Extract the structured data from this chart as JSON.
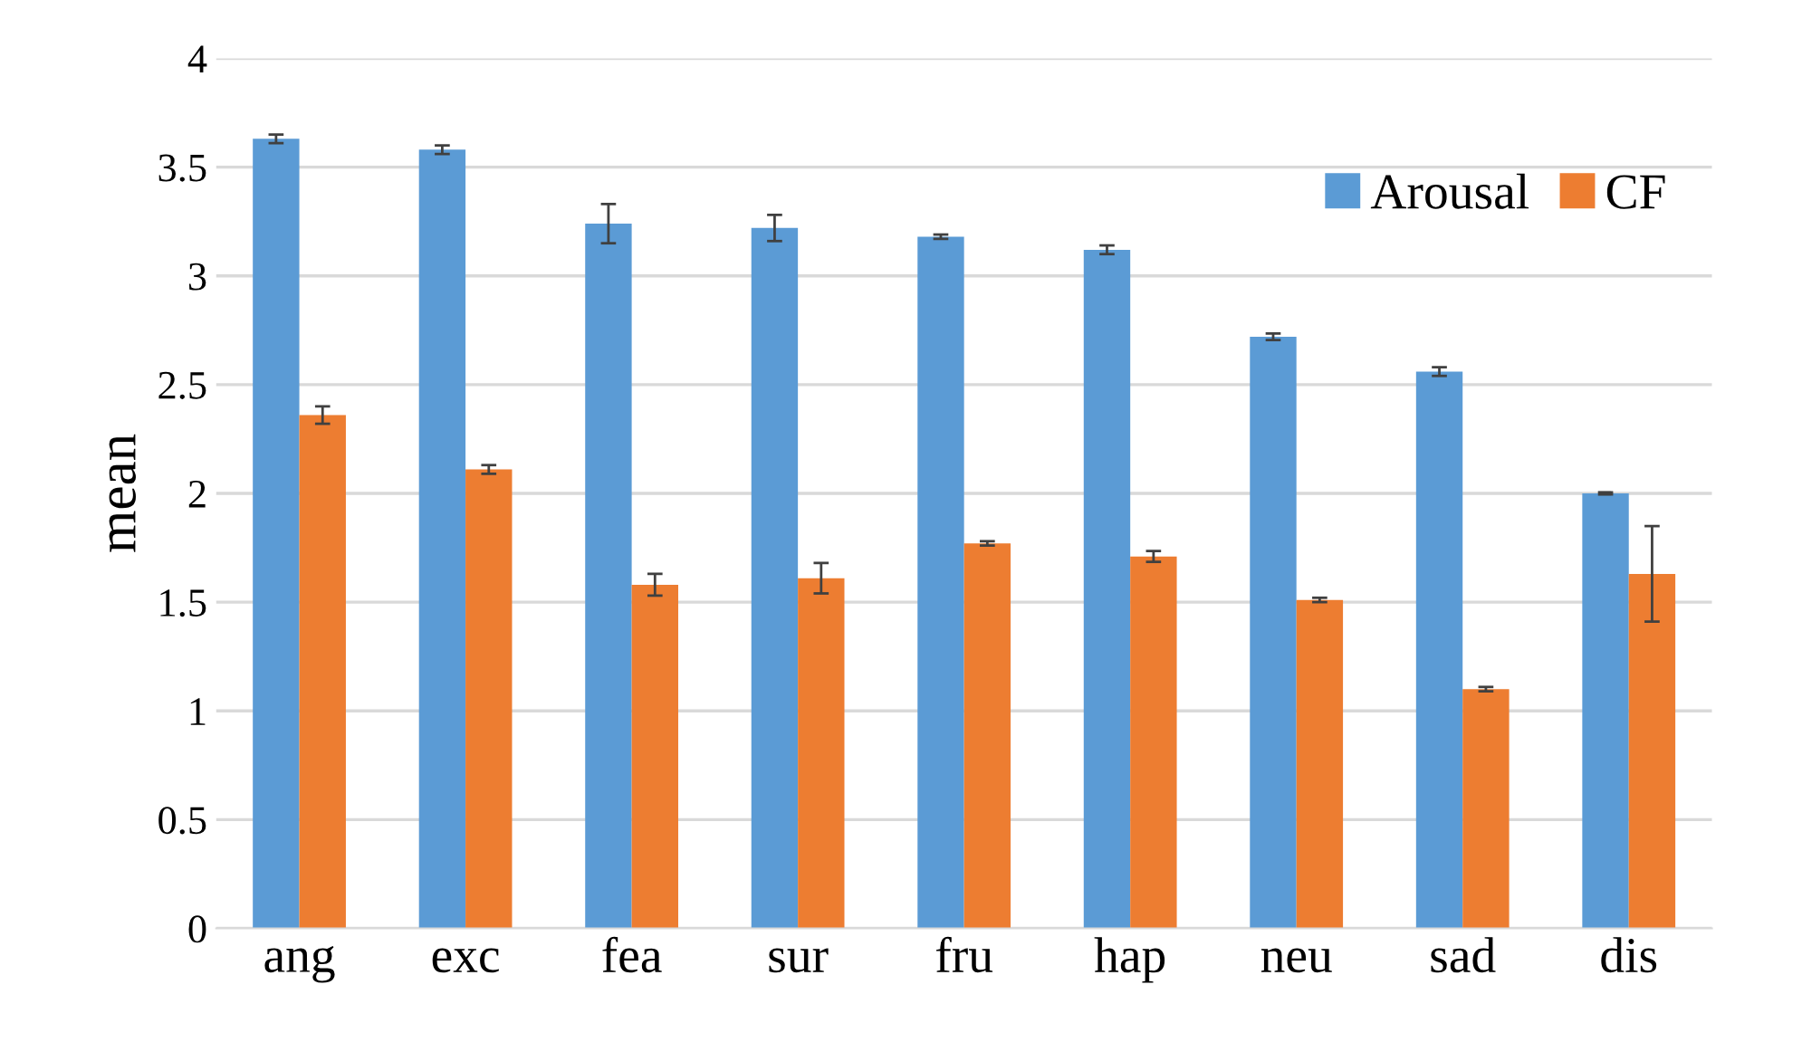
{
  "chart_data": {
    "type": "bar",
    "ylabel": "mean",
    "categories": [
      "ang",
      "exc",
      "fea",
      "sur",
      "fru",
      "hap",
      "neu",
      "sad",
      "dis"
    ],
    "series": [
      {
        "name": "Arousal",
        "color": "#5b9bd5",
        "values": [
          3.63,
          3.58,
          3.24,
          3.22,
          3.18,
          3.12,
          2.72,
          2.56,
          2.0
        ],
        "errors": [
          0.02,
          0.02,
          0.09,
          0.06,
          0.01,
          0.02,
          0.015,
          0.02,
          0.005
        ]
      },
      {
        "name": "CF",
        "color": "#ed7d31",
        "values": [
          2.36,
          2.11,
          1.58,
          1.61,
          1.77,
          1.71,
          1.51,
          1.1,
          1.63
        ],
        "errors": [
          0.04,
          0.02,
          0.05,
          0.07,
          0.01,
          0.025,
          0.01,
          0.01,
          0.22
        ]
      }
    ],
    "ylim": [
      0,
      4
    ],
    "yticks": [
      0,
      0.5,
      1,
      1.5,
      2,
      2.5,
      3,
      3.5,
      4
    ],
    "grid": "y",
    "legend": "top right"
  }
}
